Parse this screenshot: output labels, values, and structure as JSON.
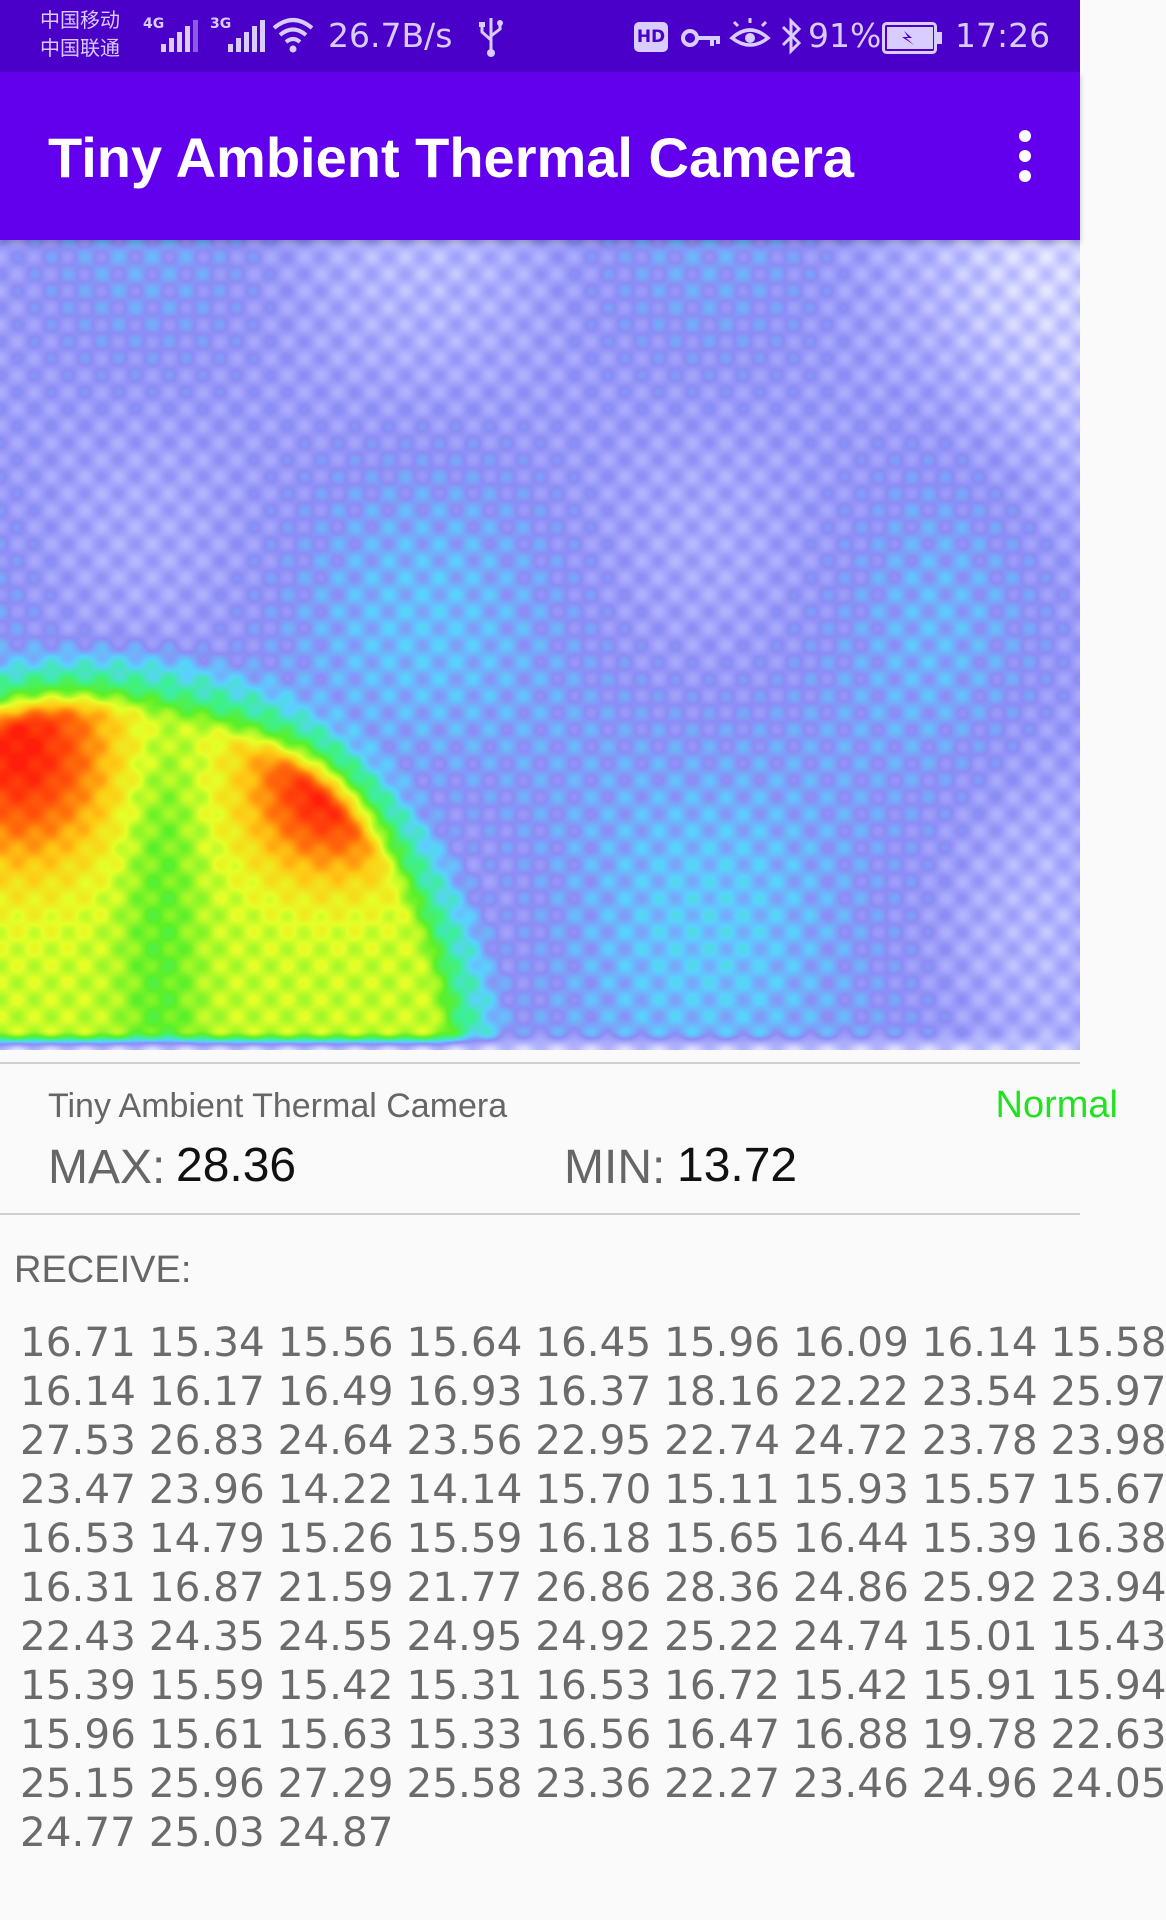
{
  "status_bar": {
    "carrier_1": "中国移动",
    "carrier_2": "中国联通",
    "signal_1_type": "4G",
    "signal_2_type": "3G",
    "net_speed": "26.7B/s",
    "battery_percent": "91%",
    "time": "17:26",
    "hd_badge": "HD",
    "icons": [
      "signal-icon",
      "wifi-icon",
      "usb-icon",
      "key-icon",
      "eye-icon",
      "bluetooth-icon",
      "battery-charging-icon"
    ]
  },
  "app_bar": {
    "title": "Tiny Ambient Thermal Camera",
    "overflow_icon": "more-vert-icon"
  },
  "colors": {
    "status_bar": "#4a00c9",
    "app_bar": "#6200ee",
    "status_ok": "#22e022"
  },
  "info": {
    "device_name": "Tiny Ambient Thermal Camera",
    "mode": "Normal",
    "max_label": "MAX:",
    "max_value": "28.36",
    "min_label": "MIN:",
    "min_value": "13.72"
  },
  "receive": {
    "label": "RECEIVE:",
    "rows": [
      "16.71 15.34 15.56 15.64 16.45 15.96 16.09 16.14 15.58",
      "16.14 16.17 16.49 16.93 16.37 18.16 22.22 23.54 25.97",
      "27.53 26.83 24.64 23.56 22.95 22.74 24.72 23.78 23.98",
      "23.47 23.96 14.22 14.14 15.70 15.11 15.93 15.57 15.67",
      "16.53 14.79 15.26 15.59 16.18 15.65 16.44 15.39 16.38",
      "16.31 16.87 21.59 21.77 26.86 28.36 24.86 25.92 23.94",
      "22.43 24.35 24.55 24.95 24.92 25.22 24.74 15.01 15.43",
      "15.39 15.59 15.42 15.31 16.53 16.72 15.42 15.91 15.94",
      "15.96 15.61 15.63 15.33 16.56 16.47 16.88 19.78 22.63",
      "25.15 25.96 27.29 25.58 23.36 22.27 23.46 24.96 24.05",
      "24.77 25.03 24.87"
    ]
  }
}
